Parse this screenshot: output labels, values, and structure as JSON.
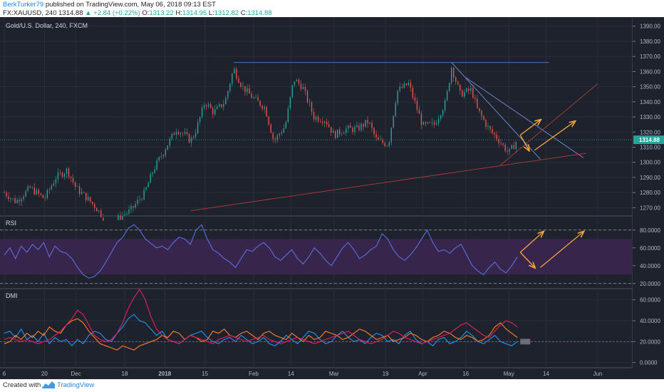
{
  "header": {
    "author": "BerkTurker79",
    "published_text": "published on TradingView.com, May 06, 2018 09:13 EST",
    "symbol": "FX:XAUUSD, 240",
    "last": "1314.88",
    "change": "+2.84 (+0.22%)",
    "o_label": "O:",
    "o_value": "1313.22",
    "h_label": "H:",
    "h_value": "1314.95",
    "l_label": "L:",
    "l_value": "1312.82",
    "c_label": "C:",
    "c_value": "1314.88"
  },
  "footer": {
    "created_with": "Created with",
    "brand": "TradingView"
  },
  "colors": {
    "background": "#1e222d",
    "candle_up": "#26a69a",
    "candle_down": "#ef5350",
    "rsi_line": "#5b6fe0",
    "rsi_band": "#3a2650",
    "dmi_plus": "#2196f3",
    "dmi_minus": "#ff7f27",
    "adx": "#e91e63",
    "arrow": "#f7a440",
    "price_badge": "#26a69a"
  },
  "chart_data": [
    {
      "type": "candlestick",
      "pane": "price",
      "title": "Gold/U.S. Dollar, 240, FXCM",
      "ylim": [
        1265,
        1396
      ],
      "y_ticks": [
        1270,
        1280,
        1290,
        1300,
        1310,
        1320,
        1330,
        1340,
        1350,
        1360,
        1370,
        1380,
        1390
      ],
      "y_tick_labels": [
        "1270.00",
        "1280.00",
        "1290.00",
        "1300.00",
        "1310.00",
        "1320.00",
        "1330.00",
        "1340.00",
        "1350.00",
        "1360.00",
        "1370.00",
        "1380.00",
        "1390.00"
      ],
      "last_price_label": "1314.88",
      "x_ticks": [
        "6",
        "20",
        "Dec",
        "18",
        "2018",
        "15",
        "Feb",
        "14",
        "Mar",
        "19",
        "Apr",
        "16",
        "May",
        "14",
        "Jun"
      ],
      "close_path": [
        [
          "Nov 06",
          1280
        ],
        [
          "Nov 10",
          1274
        ],
        [
          "Nov 15",
          1283
        ],
        [
          "Nov 20",
          1276
        ],
        [
          "Nov 24",
          1290
        ],
        [
          "Nov 28",
          1295
        ],
        [
          "Dec 01",
          1283
        ],
        [
          "Dec 05",
          1276
        ],
        [
          "Dec 08",
          1270
        ],
        [
          "Dec 12",
          1260
        ],
        [
          "Dec 15",
          1262
        ],
        [
          "Dec 20",
          1268
        ],
        [
          "Dec 25",
          1280
        ],
        [
          "Dec 28",
          1295
        ],
        [
          "Jan 02",
          1312
        ],
        [
          "Jan 05",
          1322
        ],
        [
          "Jan 08",
          1318
        ],
        [
          "Jan 10",
          1314
        ],
        [
          "Jan 12",
          1322
        ],
        [
          "Jan 15",
          1340
        ],
        [
          "Jan 18",
          1333
        ],
        [
          "Jan 22",
          1340
        ],
        [
          "Jan 25",
          1362
        ],
        [
          "Jan 28",
          1350
        ],
        [
          "Feb 01",
          1342
        ],
        [
          "Feb 05",
          1336
        ],
        [
          "Feb 08",
          1314
        ],
        [
          "Feb 12",
          1324
        ],
        [
          "Feb 15",
          1355
        ],
        [
          "Feb 18",
          1350
        ],
        [
          "Feb 22",
          1330
        ],
        [
          "Feb 26",
          1328
        ],
        [
          "Mar 01",
          1318
        ],
        [
          "Mar 05",
          1322
        ],
        [
          "Mar 09",
          1322
        ],
        [
          "Mar 13",
          1327
        ],
        [
          "Mar 16",
          1314
        ],
        [
          "Mar 20",
          1312
        ],
        [
          "Mar 23",
          1347
        ],
        [
          "Mar 27",
          1352
        ],
        [
          "Apr 01",
          1324
        ],
        [
          "Apr 05",
          1325
        ],
        [
          "Apr 09",
          1340
        ],
        [
          "Apr 11",
          1363
        ],
        [
          "Apr 14",
          1345
        ],
        [
          "Apr 18",
          1348
        ],
        [
          "Apr 20",
          1335
        ],
        [
          "Apr 24",
          1322
        ],
        [
          "Apr 27",
          1316
        ],
        [
          "May 01",
          1306
        ],
        [
          "May 03",
          1312
        ],
        [
          "May 04",
          1314.88
        ]
      ],
      "trendlines": [
        {
          "name": "resistance-horizontal",
          "from": [
            "Jan 25",
            1366
          ],
          "to": [
            "May 15",
            1366
          ]
        },
        {
          "name": "descending-1",
          "from": [
            "Apr 11",
            1366
          ],
          "to": [
            "May 12",
            1302
          ]
        },
        {
          "name": "descending-2",
          "from": [
            "Apr 16",
            1356
          ],
          "to": [
            "May 27",
            1303
          ]
        },
        {
          "name": "ascending-support-1",
          "from": [
            "Jan 10",
            1268
          ],
          "to": [
            "May 28",
            1306
          ]
        },
        {
          "name": "ascending-support-2",
          "from": [
            "Apr 28",
            1298
          ],
          "to": [
            "Jun 01",
            1352
          ]
        }
      ]
    },
    {
      "type": "line",
      "pane": "rsi",
      "title": "RSI",
      "ylim": [
        15,
        95
      ],
      "y_ticks": [
        20,
        40,
        60,
        80
      ],
      "y_tick_labels": [
        "20.0000",
        "40.0000",
        "60.0000",
        "80.0000"
      ],
      "bands": [
        30,
        70
      ],
      "series": [
        {
          "values": [
            52,
            60,
            48,
            62,
            55,
            64,
            58,
            66,
            50,
            62,
            56,
            54,
            48,
            38,
            30,
            26,
            28,
            34,
            44,
            55,
            66,
            72,
            82,
            86,
            80,
            70,
            65,
            60,
            62,
            58,
            66,
            72,
            70,
            64,
            80,
            86,
            70,
            58,
            54,
            48,
            44,
            38,
            48,
            58,
            56,
            62,
            66,
            60,
            50,
            46,
            52,
            58,
            48,
            42,
            50,
            60,
            54,
            46,
            40,
            50,
            60,
            66,
            58,
            48,
            52,
            58,
            62,
            76,
            70,
            58,
            50,
            46,
            52,
            60,
            70,
            80,
            66,
            56,
            58,
            54,
            60,
            64,
            52,
            40,
            34,
            30,
            38,
            44,
            36,
            32,
            40,
            50
          ]
        }
      ]
    },
    {
      "type": "line",
      "pane": "dmi",
      "title": "DMI",
      "ylim": [
        -5,
        70
      ],
      "y_ticks": [
        0,
        20,
        40,
        60
      ],
      "y_tick_labels": [
        "0.0000",
        "20.0000",
        "40.0000",
        "60.0000"
      ],
      "series": [
        {
          "values": [
            28,
            30,
            24,
            32,
            22,
            26,
            20,
            28,
            18,
            24,
            20,
            22,
            16,
            22,
            18,
            26,
            30,
            28,
            22,
            20,
            28,
            34,
            42,
            46,
            40,
            38,
            32,
            26,
            30,
            22,
            20,
            18,
            22,
            26,
            28,
            30,
            24,
            20,
            18,
            22,
            24,
            20,
            26,
            22,
            18,
            20,
            24,
            18,
            16,
            20,
            26,
            22,
            18,
            24,
            30,
            28,
            22,
            18,
            20,
            26,
            30,
            24,
            20,
            22,
            18,
            24,
            28,
            26,
            20,
            22,
            18,
            26,
            30,
            22,
            18,
            20,
            16,
            22,
            24,
            18,
            20,
            24,
            30,
            26,
            20,
            18,
            22,
            26,
            20,
            18,
            16,
            20
          ]
        },
        {
          "values": [
            18,
            20,
            26,
            22,
            28,
            24,
            30,
            26,
            34,
            30,
            28,
            36,
            40,
            42,
            38,
            30,
            24,
            18,
            16,
            14,
            12,
            16,
            14,
            12,
            16,
            18,
            20,
            22,
            26,
            24,
            30,
            28,
            22,
            26,
            24,
            20,
            22,
            30,
            28,
            32,
            26,
            24,
            28,
            30,
            26,
            22,
            28,
            30,
            26,
            24,
            22,
            28,
            24,
            20,
            26,
            22,
            24,
            30,
            28,
            26,
            22,
            24,
            28,
            32,
            30,
            26,
            22,
            24,
            26,
            20,
            22,
            24,
            28,
            26,
            22,
            20,
            24,
            26,
            30,
            28,
            24,
            22,
            26,
            24,
            20,
            22,
            26,
            34,
            38,
            32,
            28,
            24
          ]
        },
        {
          "values": [
            22,
            24,
            22,
            20,
            22,
            20,
            18,
            20,
            22,
            26,
            30,
            36,
            42,
            50,
            46,
            36,
            26,
            22,
            20,
            22,
            28,
            38,
            52,
            62,
            70,
            60,
            44,
            32,
            26,
            22,
            20,
            18,
            22,
            26,
            24,
            22,
            20,
            18,
            22,
            24,
            26,
            24,
            22,
            20,
            22,
            24,
            26,
            22,
            20,
            18,
            20,
            22,
            24,
            22,
            20,
            18,
            20,
            22,
            24,
            26,
            28,
            30,
            26,
            22,
            20,
            18,
            20,
            22,
            26,
            30,
            28,
            24,
            22,
            20,
            18,
            20,
            22,
            24,
            26,
            28,
            32,
            36,
            38,
            34,
            30,
            26,
            24,
            30,
            36,
            40,
            38,
            34
          ]
        }
      ]
    }
  ]
}
